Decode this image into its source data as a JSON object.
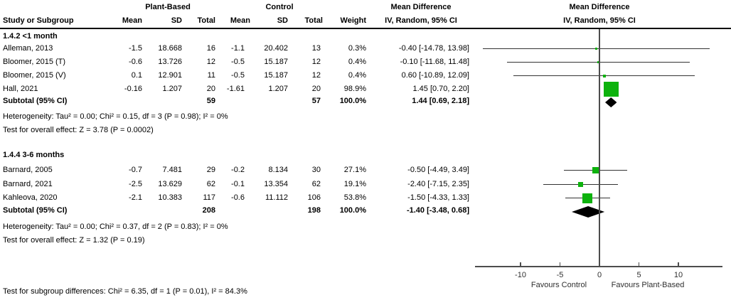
{
  "colors": {
    "marker_green": "#0db20d",
    "ci_line": "#333333",
    "axis_line": "#4d4d4d",
    "diamond": "#000000",
    "text": "#000000",
    "background": "#ffffff"
  },
  "header": {
    "group1": "Plant-Based",
    "group2": "Control",
    "md_text_col_line1": "Mean Difference",
    "md_text_col_line2": "IV, Random, 95% CI",
    "md_plot_col_line1": "Mean Difference",
    "md_plot_col_line2": "IV, Random, 95% CI",
    "study_col": "Study or Subgroup",
    "mean1": "Mean",
    "sd1": "SD",
    "total1": "Total",
    "mean2": "Mean",
    "sd2": "SD",
    "total2": "Total",
    "weight": "Weight"
  },
  "chart_data": {
    "type": "forest",
    "effect_measure": "Mean Difference, IV, Random, 95% CI",
    "x_axis": {
      "ticks": [
        -10,
        -5,
        0,
        5,
        10
      ],
      "min": -15.8,
      "max": 15.6,
      "label_left": "Favours Control",
      "label_right": "Favours Plant-Based"
    },
    "subgroups": [
      {
        "title": "1.4.2 <1 month",
        "studies": [
          {
            "name": "Alleman, 2013",
            "mean1": "-1.5",
            "sd1": "18.668",
            "total1": "16",
            "mean2": "-1.1",
            "sd2": "20.402",
            "total2": "13",
            "weight": "0.3%",
            "ci_text": "-0.40 [-14.78, 13.98]",
            "md": -0.4,
            "lo": -14.78,
            "hi": 13.98,
            "size": 3
          },
          {
            "name": "Bloomer, 2015 (T)",
            "mean1": "-0.6",
            "sd1": "13.726",
            "total1": "12",
            "mean2": "-0.5",
            "sd2": "15.187",
            "total2": "12",
            "weight": "0.4%",
            "ci_text": "-0.10 [-11.68, 11.48]",
            "md": -0.1,
            "lo": -11.68,
            "hi": 11.48,
            "size": 3
          },
          {
            "name": "Bloomer, 2015 (V)",
            "mean1": "0.1",
            "sd1": "12.901",
            "total1": "11",
            "mean2": "-0.5",
            "sd2": "15.187",
            "total2": "12",
            "weight": "0.4%",
            "ci_text": "0.60 [-10.89, 12.09]",
            "md": 0.6,
            "lo": -10.89,
            "hi": 12.09,
            "size": 4
          },
          {
            "name": "Hall, 2021",
            "mean1": "-0.16",
            "sd1": "1.207",
            "total1": "20",
            "mean2": "-1.61",
            "sd2": "1.207",
            "total2": "20",
            "weight": "98.9%",
            "ci_text": "1.45 [0.70, 2.20]",
            "md": 1.45,
            "lo": 0.7,
            "hi": 2.2,
            "size": 21
          }
        ],
        "subtotal": {
          "label": "Subtotal (95% CI)",
          "total1": "59",
          "total2": "57",
          "weight": "100.0%",
          "ci_text": "1.44 [0.69, 2.18]",
          "lo": 0.69,
          "hi": 2.18
        },
        "heterogeneity": "Heterogeneity: Tau² = 0.00; Chi² = 0.15, df = 3 (P = 0.98); I² = 0%",
        "overall_effect": "Test for overall effect: Z = 3.78 (P = 0.0002)"
      },
      {
        "title": "1.4.4 3-6 months",
        "studies": [
          {
            "name": "Barnard, 2005",
            "mean1": "-0.7",
            "sd1": "7.481",
            "total1": "29",
            "mean2": "-0.2",
            "sd2": "8.134",
            "total2": "30",
            "weight": "27.1%",
            "ci_text": "-0.50 [-4.49, 3.49]",
            "md": -0.5,
            "lo": -4.49,
            "hi": 3.49,
            "size": 9
          },
          {
            "name": "Barnard, 2021",
            "mean1": "-2.5",
            "sd1": "13.629",
            "total1": "62",
            "mean2": "-0.1",
            "sd2": "13.354",
            "total2": "62",
            "weight": "19.1%",
            "ci_text": "-2.40 [-7.15, 2.35]",
            "md": -2.4,
            "lo": -7.15,
            "hi": 2.35,
            "size": 7
          },
          {
            "name": "Kahleova, 2020",
            "mean1": "-2.1",
            "sd1": "10.383",
            "total1": "117",
            "mean2": "-0.6",
            "sd2": "11.112",
            "total2": "106",
            "weight": "53.8%",
            "ci_text": "-1.50 [-4.33, 1.33]",
            "md": -1.5,
            "lo": -4.33,
            "hi": 1.33,
            "size": 14
          }
        ],
        "subtotal": {
          "label": "Subtotal (95% CI)",
          "total1": "208",
          "total2": "198",
          "weight": "100.0%",
          "ci_text": "-1.40 [-3.48, 0.68]",
          "lo": -3.48,
          "hi": 0.68
        },
        "heterogeneity": "Heterogeneity: Tau² = 0.00; Chi² = 0.37, df = 2 (P = 0.83); I² = 0%",
        "overall_effect": "Test for overall effect: Z = 1.32 (P = 0.19)"
      }
    ],
    "footer": "Test for subgroup differences: Chi² = 6.35, df = 1 (P = 0.01), I² = 84.3%"
  }
}
